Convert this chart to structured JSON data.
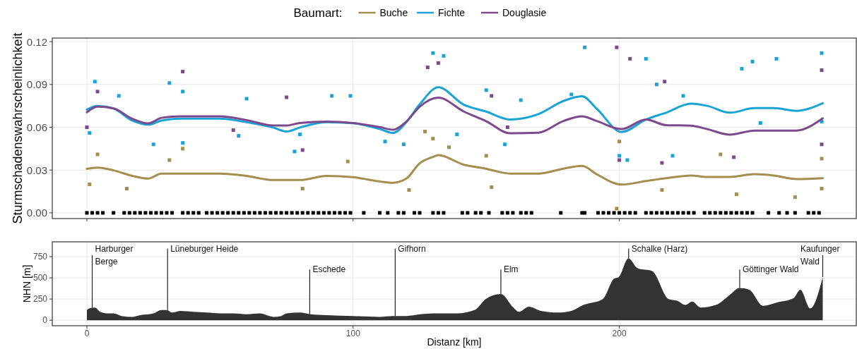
{
  "chart_data": [
    {
      "type": "line",
      "legend_title": "Baumart:",
      "legend": "top",
      "ylabel": "Sturmschadenswahrscheinlichkeit",
      "xlim": [
        -13,
        289
      ],
      "ylim": [
        -0.004,
        0.1225
      ],
      "xticks": [
        0,
        100,
        200
      ],
      "yticks": [
        {
          "value": 0,
          "label": "0.00"
        },
        {
          "value": 0.03,
          "label": "0.03"
        },
        {
          "value": 0.06,
          "label": "0.06"
        },
        {
          "value": 0.09,
          "label": "0.09"
        },
        {
          "value": 0.12,
          "label": "0.12"
        }
      ],
      "grid": true,
      "tick_labels": "y",
      "line_style": "solid",
      "series": [
        {
          "type": "scatter",
          "marker": "square",
          "color": "#a38d4f",
          "x": [
            1,
            4,
            15,
            31,
            36,
            81,
            98,
            121,
            127,
            130,
            136,
            150,
            152,
            199,
            200,
            216,
            238,
            244,
            266,
            276,
            276
          ],
          "values": [
            0.02,
            0.041,
            0.017,
            0.037,
            0.045,
            0.017,
            0.036,
            0.016,
            0.057,
            0.052,
            0.046,
            0.04,
            0.018,
            0.003,
            0.05,
            0.016,
            0.041,
            0.013,
            0.011,
            0.038,
            0.017
          ]
        },
        {
          "type": "scatter",
          "marker": "square",
          "color": "#1aa3d4",
          "x": [
            1,
            3,
            12,
            25,
            31,
            36,
            36,
            57,
            60,
            78,
            80,
            92,
            99,
            112,
            119,
            130,
            134,
            139,
            150,
            157,
            163,
            182,
            187,
            200,
            203,
            210,
            214,
            220,
            224,
            246,
            250,
            253,
            259,
            276,
            276
          ],
          "values": [
            0.056,
            0.092,
            0.082,
            0.048,
            0.091,
            0.085,
            0.049,
            0.054,
            0.08,
            0.043,
            0.055,
            0.082,
            0.082,
            0.05,
            0.048,
            0.112,
            0.11,
            0.055,
            0.086,
            0.048,
            0.079,
            0.083,
            0.116,
            0.04,
            0.037,
            0.108,
            0.09,
            0.04,
            0.082,
            0.101,
            0.106,
            0.063,
            0.108,
            0.112,
            0.064
          ]
        },
        {
          "type": "scatter",
          "marker": "square",
          "color": "#7b4a8c",
          "x": [
            0,
            4,
            36,
            55,
            75,
            81,
            128,
            132,
            152,
            158,
            199,
            200,
            204,
            217,
            216,
            243,
            276,
            276
          ],
          "values": [
            0.06,
            0.085,
            0.099,
            0.058,
            0.081,
            0.044,
            0.102,
            0.105,
            0.082,
            0.06,
            0.116,
            0.037,
            0.108,
            0.092,
            0.035,
            0.039,
            0.048,
            0.1
          ]
        },
        {
          "type": "scatter",
          "marker": "square",
          "color": "#000000",
          "x": [
            0,
            2,
            4,
            6,
            10,
            14,
            16,
            18,
            20,
            22,
            24,
            26,
            28,
            30,
            32,
            36,
            38,
            40,
            42,
            45,
            47,
            49,
            51,
            53,
            55,
            57,
            59,
            61,
            63,
            65,
            67,
            69,
            71,
            73,
            75,
            77,
            79,
            81,
            83,
            85,
            87,
            89,
            91,
            93,
            95,
            97,
            99,
            104,
            110,
            113,
            117,
            119,
            123,
            125,
            130,
            132,
            134,
            141,
            143,
            146,
            148,
            151,
            156,
            158,
            160,
            163,
            165,
            167,
            178,
            186,
            187,
            192,
            194,
            196,
            198,
            200,
            202,
            204,
            206,
            210,
            212,
            214,
            216,
            218,
            220,
            222,
            224,
            226,
            228,
            232,
            234,
            236,
            238,
            240,
            242,
            244,
            246,
            248,
            250,
            256,
            260,
            263,
            266,
            271,
            273,
            275
          ],
          "values": [
            0,
            0,
            0,
            0,
            0,
            0,
            0,
            0,
            0,
            0,
            0,
            0,
            0,
            0,
            0,
            0,
            0,
            0,
            0,
            0,
            0,
            0,
            0,
            0,
            0,
            0,
            0,
            0,
            0,
            0,
            0,
            0,
            0,
            0,
            0,
            0,
            0,
            0,
            0,
            0,
            0,
            0,
            0,
            0,
            0,
            0,
            0,
            0,
            0,
            0,
            0,
            0,
            0,
            0,
            0,
            0,
            0,
            0,
            0,
            0,
            0,
            0,
            0,
            0,
            0,
            0,
            0,
            0,
            0,
            0,
            0,
            0,
            0,
            0,
            0,
            0,
            0,
            0,
            0,
            0,
            0,
            0,
            0,
            0,
            0,
            0,
            0,
            0,
            0,
            0,
            0,
            0,
            0,
            0,
            0,
            0,
            0,
            0,
            0,
            0,
            0,
            0,
            0,
            0,
            0,
            0
          ]
        },
        {
          "name": "Buche",
          "color": "#a38d4f",
          "x": [
            0,
            4,
            10,
            17,
            23,
            28,
            35,
            50,
            60,
            70,
            80,
            90,
            100,
            110,
            115,
            120,
            125,
            130,
            132,
            141.5,
            149.8,
            159,
            169.6,
            179,
            186,
            191.5,
            200.8,
            210,
            217.5,
            226.9,
            233,
            241.5,
            250.8,
            258,
            266.5,
            276.4
          ],
          "values": [
            0.0308,
            0.0317,
            0.0298,
            0.0259,
            0.024,
            0.0275,
            0.0275,
            0.0275,
            0.0259,
            0.023,
            0.023,
            0.0259,
            0.025,
            0.022,
            0.0211,
            0.024,
            0.0347,
            0.0392,
            0.0405,
            0.0338,
            0.031,
            0.0275,
            0.0275,
            0.031,
            0.0329,
            0.0271,
            0.0198,
            0.0223,
            0.0243,
            0.0262,
            0.0252,
            0.0252,
            0.0271,
            0.0262,
            0.0237,
            0.0243
          ]
        },
        {
          "name": "Fichte",
          "color": "#1aa3d4",
          "x": [
            0,
            4,
            10,
            17,
            23,
            28,
            35,
            50,
            60,
            70,
            75,
            80,
            90,
            100,
            110,
            115,
            120,
            125,
            132,
            141.5,
            149.8,
            159,
            169.6,
            179,
            186,
            191.5,
            200.8,
            210,
            217.5,
            226.9,
            233,
            241.5,
            250.8,
            258,
            266.5,
            276.4
          ],
          "values": [
            0.0724,
            0.075,
            0.0732,
            0.0647,
            0.0618,
            0.0647,
            0.066,
            0.066,
            0.0636,
            0.0598,
            0.057,
            0.0598,
            0.0636,
            0.0628,
            0.0588,
            0.056,
            0.0636,
            0.076,
            0.088,
            0.0759,
            0.0711,
            0.0654,
            0.0692,
            0.0784,
            0.0817,
            0.073,
            0.0567,
            0.0654,
            0.0702,
            0.0765,
            0.075,
            0.0702,
            0.0734,
            0.0734,
            0.0715,
            0.0769
          ]
        },
        {
          "name": "Douglasie",
          "color": "#7b4a8c",
          "x": [
            0,
            4,
            10,
            17,
            23,
            28,
            35,
            50,
            60,
            70,
            75,
            80,
            90,
            100,
            110,
            115,
            120,
            125,
            132,
            141.5,
            149.8,
            159,
            169.6,
            179,
            186,
            191.5,
            200.8,
            210,
            217.5,
            226.9,
            233,
            241.5,
            250.8,
            258,
            266.5,
            276.4
          ],
          "values": [
            0.0705,
            0.0744,
            0.0732,
            0.066,
            0.0627,
            0.0666,
            0.0677,
            0.0677,
            0.065,
            0.0612,
            0.0612,
            0.063,
            0.064,
            0.063,
            0.0601,
            0.0583,
            0.064,
            0.0744,
            0.0807,
            0.0711,
            0.0644,
            0.0558,
            0.0562,
            0.0644,
            0.0677,
            0.0644,
            0.0587,
            0.0654,
            0.0615,
            0.0611,
            0.0587,
            0.0548,
            0.0577,
            0.0577,
            0.0577,
            0.0663
          ]
        }
      ]
    },
    {
      "type": "area",
      "xlabel": "Distanz [km]",
      "ylabel": "NHN [m]",
      "xlim": [
        -13,
        289
      ],
      "ylim": [
        -65,
        925
      ],
      "xticks": [
        0,
        100,
        200
      ],
      "yticks": [
        0,
        250,
        500,
        750
      ],
      "grid": true,
      "series": [
        {
          "color": "#333333",
          "x": [
            0,
            1,
            3,
            5,
            8,
            10,
            13,
            17,
            20,
            25,
            28,
            30,
            32,
            35,
            40,
            45,
            50,
            55,
            60,
            65,
            70,
            73,
            75,
            80,
            84,
            90,
            100,
            110,
            115,
            120,
            125,
            130,
            134,
            139,
            145.6,
            149.8,
            155.5,
            160.2,
            162.3,
            166,
            170.6,
            177,
            182,
            186.5,
            193.8,
            198,
            199.8,
            203.4,
            207,
            212.3,
            218.5,
            221.7,
            224.8,
            227.4,
            230.5,
            236.3,
            241.5,
            245.1,
            248.8,
            254,
            259.2,
            265.4,
            268,
            271.7,
            276.4
          ],
          "values": [
            120,
            140,
            150,
            100,
            80,
            80,
            50,
            40,
            60,
            80,
            120,
            120,
            90,
            110,
            100,
            90,
            80,
            80,
            70,
            80,
            40,
            50,
            80,
            90,
            70,
            60,
            50,
            40,
            50,
            50,
            70,
            80,
            80,
            80,
            120,
            250,
            310,
            150,
            100,
            160,
            110,
            90,
            110,
            180,
            250,
            490,
            510,
            730,
            610,
            580,
            250,
            230,
            180,
            220,
            150,
            180,
            300,
            380,
            360,
            170,
            210,
            260,
            360,
            140,
            510
          ]
        }
      ],
      "annotations": [
        {
          "text": "Harburger\nBerge",
          "x": 2,
          "y": 145
        },
        {
          "text": "Lüneburger Heide",
          "x": 30.3,
          "y": 120
        },
        {
          "text": "Eschede",
          "x": 83.7,
          "y": 70
        },
        {
          "text": "Gifhorn",
          "x": 115.8,
          "y": 50
        },
        {
          "text": "Elm",
          "x": 155.5,
          "y": 310
        },
        {
          "text": "Schalke (Harz)",
          "x": 203.5,
          "y": 730
        },
        {
          "text": "Göttinger Wald",
          "x": 245.2,
          "y": 380
        },
        {
          "text": "Kaufunger\nWald",
          "x": 276.4,
          "y": 510
        }
      ]
    }
  ]
}
